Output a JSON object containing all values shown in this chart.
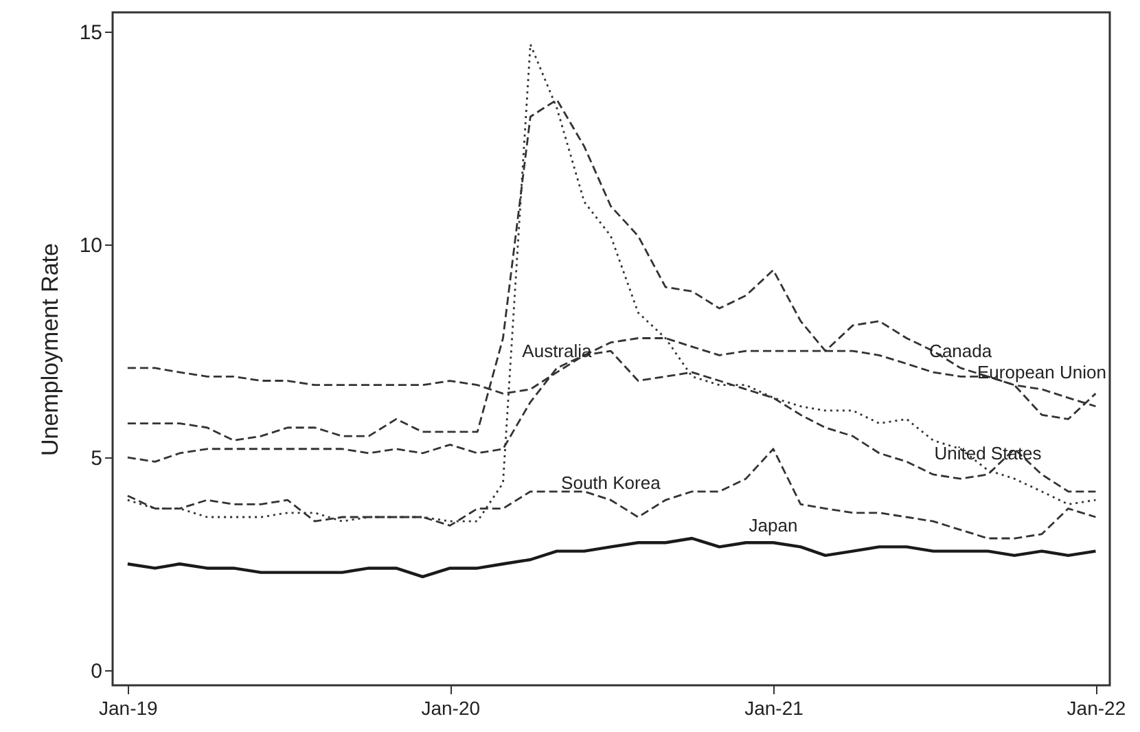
{
  "chart_data": {
    "type": "line",
    "ylabel": "Unemployment Rate",
    "x": [
      "2019-01",
      "2019-02",
      "2019-03",
      "2019-04",
      "2019-05",
      "2019-06",
      "2019-07",
      "2019-08",
      "2019-09",
      "2019-10",
      "2019-11",
      "2019-12",
      "2020-01",
      "2020-02",
      "2020-03",
      "2020-04",
      "2020-05",
      "2020-06",
      "2020-07",
      "2020-08",
      "2020-09",
      "2020-10",
      "2020-11",
      "2020-12",
      "2021-01",
      "2021-02",
      "2021-03",
      "2021-04",
      "2021-05",
      "2021-06",
      "2021-07",
      "2021-08",
      "2021-09",
      "2021-10",
      "2021-11",
      "2021-12",
      "2022-01"
    ],
    "series": [
      {
        "name": "United States",
        "color": "#333333",
        "line_style": "dotted",
        "values": [
          4.0,
          3.8,
          3.8,
          3.6,
          3.6,
          3.6,
          3.7,
          3.7,
          3.5,
          3.6,
          3.6,
          3.6,
          3.5,
          3.5,
          4.4,
          14.7,
          13.2,
          11.0,
          10.2,
          8.4,
          7.8,
          6.9,
          6.7,
          6.7,
          6.4,
          6.2,
          6.1,
          6.1,
          5.8,
          5.9,
          5.4,
          5.2,
          4.7,
          4.5,
          4.2,
          3.9,
          4.0
        ]
      },
      {
        "name": "Canada",
        "color": "#333333",
        "line_style": "dashed",
        "values": [
          5.8,
          5.8,
          5.8,
          5.7,
          5.4,
          5.5,
          5.7,
          5.7,
          5.5,
          5.5,
          5.9,
          5.6,
          5.6,
          5.6,
          7.8,
          13.0,
          13.4,
          12.3,
          10.9,
          10.2,
          9.0,
          8.9,
          8.5,
          8.8,
          9.4,
          8.2,
          7.5,
          8.1,
          8.2,
          7.8,
          7.5,
          7.1,
          6.9,
          6.7,
          6.0,
          5.9,
          6.5
        ]
      },
      {
        "name": "European Union",
        "color": "#333333",
        "line_style": "dashed",
        "values": [
          7.1,
          7.1,
          7.0,
          6.9,
          6.9,
          6.8,
          6.8,
          6.7,
          6.7,
          6.7,
          6.7,
          6.7,
          6.8,
          6.7,
          6.5,
          6.6,
          7.0,
          7.4,
          7.7,
          7.8,
          7.8,
          7.6,
          7.4,
          7.5,
          7.5,
          7.5,
          7.5,
          7.5,
          7.4,
          7.2,
          7.0,
          6.9,
          6.9,
          6.7,
          6.6,
          6.4,
          6.2
        ]
      },
      {
        "name": "Australia",
        "color": "#333333",
        "line_style": "dashed",
        "values": [
          5.0,
          4.9,
          5.1,
          5.2,
          5.2,
          5.2,
          5.2,
          5.2,
          5.2,
          5.1,
          5.2,
          5.1,
          5.3,
          5.1,
          5.2,
          6.3,
          7.1,
          7.4,
          7.5,
          6.8,
          6.9,
          7.0,
          6.8,
          6.6,
          6.4,
          6.0,
          5.7,
          5.5,
          5.1,
          4.9,
          4.6,
          4.5,
          4.6,
          5.2,
          4.6,
          4.2,
          4.2
        ]
      },
      {
        "name": "South Korea",
        "color": "#333333",
        "line_style": "dashed",
        "values": [
          4.1,
          3.8,
          3.8,
          4.0,
          3.9,
          3.9,
          4.0,
          3.5,
          3.6,
          3.6,
          3.6,
          3.6,
          3.4,
          3.8,
          3.8,
          4.2,
          4.2,
          4.2,
          4.0,
          3.6,
          4.0,
          4.2,
          4.2,
          4.5,
          5.2,
          3.9,
          3.8,
          3.7,
          3.7,
          3.6,
          3.5,
          3.3,
          3.1,
          3.1,
          3.2,
          3.8,
          3.6
        ]
      },
      {
        "name": "Japan",
        "color": "#1a1a1a",
        "line_style": "solid",
        "values": [
          2.5,
          2.4,
          2.5,
          2.4,
          2.4,
          2.3,
          2.3,
          2.3,
          2.3,
          2.4,
          2.4,
          2.2,
          2.4,
          2.4,
          2.5,
          2.6,
          2.8,
          2.8,
          2.9,
          3.0,
          3.0,
          3.1,
          2.9,
          3.0,
          3.0,
          2.9,
          2.7,
          2.8,
          2.9,
          2.9,
          2.8,
          2.8,
          2.8,
          2.7,
          2.8,
          2.7,
          2.8
        ]
      }
    ],
    "xlim": [
      "2018-12-15",
      "2022-01-17"
    ],
    "xticks": [
      {
        "value": "2019-01",
        "label": "Jan-19"
      },
      {
        "value": "2020-01",
        "label": "Jan-20"
      },
      {
        "value": "2021-01",
        "label": "Jan-21"
      },
      {
        "value": "2022-01",
        "label": "Jan-22"
      }
    ],
    "ylim": [
      -0.35,
      15.45
    ],
    "yticks": [
      0,
      5,
      10,
      15
    ]
  }
}
